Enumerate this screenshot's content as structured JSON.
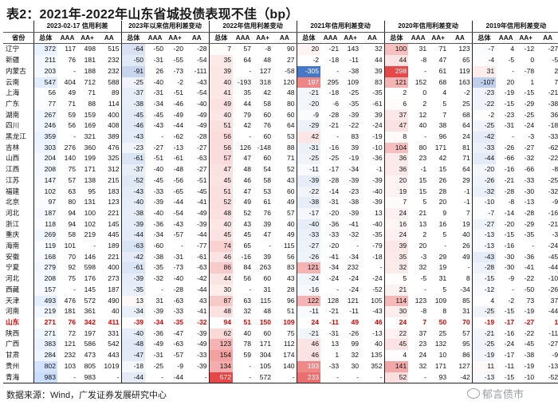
{
  "title": "表2：2021年-2022年山东省城投债表现不佳（bp）",
  "source": "数据来源：Wind，广发证券发展研究中心",
  "watermark": "郁言债市",
  "table": {
    "group_headers": [
      "2023-02-17 信用利差",
      "2023年以来信用利差变动",
      "2022年信用利差变动",
      "2021年信用利差变动",
      "2020年信用利差变动",
      "2019年信用利差变动"
    ],
    "province_header": "省份",
    "sub_headers": [
      "总体",
      "AAA",
      "AA+",
      "AA"
    ],
    "highlight_province": "山东",
    "rows": [
      [
        "辽宁",
        "372",
        "117",
        "498",
        "515",
        "-64",
        "-50",
        "-20",
        "-28",
        "7",
        "57",
        "-8",
        "90",
        "20",
        "-21",
        "143",
        "32",
        "100",
        "31",
        "71",
        "123",
        "-7",
        "4",
        "-12",
        "-27"
      ],
      [
        "新疆",
        "211",
        "76",
        "181",
        "232",
        "-50",
        "-31",
        "-55",
        "-54",
        "35",
        "64",
        "48",
        "27",
        "-2",
        "-18",
        "-11",
        "44",
        "44",
        "-8",
        "47",
        "65",
        "-4",
        "-5",
        "0",
        "-5"
      ],
      [
        "内蒙古",
        "203",
        "-",
        "188",
        "232",
        "-91",
        "26",
        "-73",
        "-111",
        "39",
        "-",
        "127",
        "-58",
        "-305",
        "-",
        "-38",
        "39",
        "298",
        "-",
        "61",
        "119",
        "31",
        "-",
        "-78",
        "2"
      ],
      [
        "云南",
        "547",
        "404",
        "712",
        "588",
        "-25",
        "-40",
        "-2",
        "-43",
        "40",
        "-193",
        "318",
        "120",
        "197",
        "295",
        "109",
        "83",
        "121",
        "152",
        "68",
        "163",
        "-107",
        "20",
        "1",
        "7"
      ],
      [
        "上海",
        "56",
        "49",
        "71",
        "89",
        "-37",
        "-31",
        "-51",
        "-54",
        "41",
        "35",
        "42",
        "48",
        "-21",
        "-18",
        "-25",
        "-35",
        "2",
        "0",
        "4",
        "-2",
        "-23",
        "-19",
        "-15",
        "-21"
      ],
      [
        "广东",
        "77",
        "71",
        "88",
        "114",
        "-38",
        "-34",
        "-46",
        "-40",
        "49",
        "44",
        "58",
        "80",
        "-20",
        "-6",
        "-35",
        "-61",
        "6",
        "2",
        "5",
        "25",
        "-22",
        "-15",
        "-29",
        "-38"
      ],
      [
        "湖南",
        "267",
        "59",
        "159",
        "400",
        "-45",
        "-45",
        "-49",
        "-49",
        "40",
        "79",
        "60",
        "60",
        "-9",
        "-28",
        "-39",
        "39",
        "37",
        "12",
        "7",
        "68",
        "-2",
        "-23",
        "-25",
        "36"
      ],
      [
        "四川",
        "246",
        "56",
        "169",
        "408",
        "-46",
        "-43",
        "-44",
        "-49",
        "51",
        "42",
        "76",
        "64",
        "-29",
        "-21",
        "-22",
        "-24",
        "47",
        "40",
        "38",
        "64",
        "-25",
        "-31",
        "-24",
        "-18"
      ],
      [
        "黑龙江",
        "359",
        "-",
        "321",
        "389",
        "-43",
        "-",
        "-62",
        "-28",
        "56",
        "-",
        "60",
        "53",
        "42",
        "-",
        "83",
        "-19",
        "8",
        "-",
        "96",
        "24",
        "-42",
        "-",
        "-3",
        "-33"
      ],
      [
        "吉林",
        "303",
        "276",
        "360",
        "476",
        "-23",
        "-27",
        "-13",
        "-27",
        "56",
        "126",
        "-148",
        "88",
        "-31",
        "-16",
        "39",
        "-10",
        "104",
        "80",
        "171",
        "81",
        "-33",
        "-26",
        "-27",
        "-62"
      ],
      [
        "山西",
        "204",
        "140",
        "199",
        "325",
        "-61",
        "-51",
        "-61",
        "-63",
        "57",
        "47",
        "60",
        "71",
        "-25",
        "-25",
        "-19",
        "-36",
        "36",
        "23",
        "42",
        "71",
        "-44",
        "-66",
        "-32",
        "-22"
      ],
      [
        "江西",
        "208",
        "75",
        "171",
        "312",
        "-37",
        "-40",
        "-48",
        "-27",
        "47",
        "48",
        "54",
        "52",
        "-11",
        "-17",
        "-34",
        "-1",
        "36",
        "-1",
        "15",
        "64",
        "-20",
        "-16",
        "-66",
        "-8"
      ],
      [
        "江苏",
        "147",
        "57",
        "138",
        "215",
        "-52",
        "-45",
        "-56",
        "-51",
        "45",
        "46",
        "58",
        "43",
        "-39",
        "-28",
        "-39",
        "-39",
        "20",
        "15",
        "26",
        "29",
        "-26",
        "-21",
        "-33",
        "-25"
      ],
      [
        "福建",
        "102",
        "63",
        "95",
        "183",
        "-43",
        "-33",
        "-65",
        "-45",
        "51",
        "47",
        "53",
        "60",
        "-22",
        "-14",
        "-23",
        "-40",
        "19",
        "15",
        "28",
        "-1",
        "-32",
        "-28",
        "-30",
        "-32"
      ],
      [
        "北京",
        "97",
        "80",
        "131",
        "123",
        "-40",
        "-39",
        "-44",
        "-41",
        "52",
        "49",
        "61",
        "49",
        "-38",
        "-31",
        "-38",
        "-39",
        "7",
        "5",
        "20",
        "-1",
        "-10",
        "-8",
        "-13",
        "-9"
      ],
      [
        "河北",
        "187",
        "94",
        "100",
        "221",
        "-38",
        "-40",
        "-54",
        "-49",
        "48",
        "52",
        "76",
        "57",
        "-17",
        "-20",
        "-39",
        "13",
        "24",
        "21",
        "9",
        "7",
        "-7",
        "-14",
        "-28",
        "-16"
      ],
      [
        "浙江",
        "118",
        "94",
        "102",
        "145",
        "-39",
        "-36",
        "-43",
        "-39",
        "40",
        "43",
        "39",
        "40",
        "-40",
        "-36",
        "-41",
        "-40",
        "16",
        "13",
        "16",
        "19",
        "-27",
        "-20",
        "-29",
        "-21"
      ],
      [
        "重庆",
        "269",
        "58",
        "219",
        "445",
        "-44",
        "-34",
        "-57",
        "-44",
        "45",
        "45",
        "47",
        "49",
        "-33",
        "-33",
        "-32",
        "-35",
        "24",
        "2",
        "5",
        "40",
        "-13",
        "-15",
        "-35",
        "-3"
      ],
      [
        "海南",
        "119",
        "101",
        "-",
        "189",
        "-63",
        "-60",
        "-",
        "-77",
        "74",
        "65",
        "-",
        "115",
        "-27",
        "-20",
        "-",
        "-79",
        "39",
        "20",
        "-",
        "26",
        "-13",
        "-16",
        "-",
        "-24"
      ],
      [
        "安徽",
        "168",
        "70",
        "146",
        "221",
        "-42",
        "-38",
        "-31",
        "-61",
        "46",
        "-16",
        "39",
        "56",
        "-26",
        "-41",
        "-34",
        "-18",
        "35",
        "-3",
        "29",
        "49",
        "-43",
        "-30",
        "-36",
        "-45"
      ],
      [
        "宁夏",
        "279",
        "92",
        "598",
        "400",
        "-61",
        "-35",
        "-73",
        "-63",
        "86",
        "84",
        "263",
        "83",
        "121",
        "-34",
        "232",
        "-",
        "32",
        "32",
        "19",
        "-",
        "-28",
        "-30",
        "-41",
        "-44"
      ],
      [
        "河北",
        "208",
        "75",
        "176",
        "273",
        "-39",
        "-32",
        "-40",
        "-42",
        "44",
        "56",
        "60",
        "43",
        "-24",
        "-24",
        "-24",
        "-24",
        "5",
        "-5",
        "31",
        "8",
        "-15",
        "-9",
        "-22",
        "-10"
      ],
      [
        "西藏",
        "157",
        "-",
        "145",
        "187",
        "-35",
        "-",
        "-28",
        "-44",
        "30",
        "-",
        "31",
        "28",
        "-16",
        "-",
        "-24",
        "-52",
        "21",
        "-",
        "5",
        "-34",
        "-12",
        "-",
        "-50",
        "-26"
      ],
      [
        "天津",
        "493",
        "476",
        "572",
        "490",
        "13",
        "31",
        "-63",
        "43",
        "87",
        "63",
        "115",
        "96",
        "122",
        "128",
        "121",
        "105",
        "114",
        "123",
        "109",
        "85",
        "4",
        "-2",
        "73",
        "37"
      ],
      [
        "河南",
        "219",
        "181",
        "361",
        "40",
        "-34",
        "-39",
        "-33",
        "-41",
        "48",
        "32",
        "48",
        "51",
        "-11",
        "-21",
        "-11",
        "-43",
        "30",
        "-8",
        "8",
        "31",
        "-25",
        "-15",
        "-19",
        "-44"
      ],
      [
        "山东",
        "271",
        "76",
        "342",
        "411",
        "-39",
        "-34",
        "-35",
        "-32",
        "94",
        "51",
        "150",
        "109",
        "24",
        "-11",
        "49",
        "46",
        "24",
        "7",
        "50",
        "70",
        "-19",
        "-17",
        "-27",
        "1"
      ],
      [
        "陕西",
        "271",
        "72",
        "197",
        "331",
        "-40",
        "-36",
        "-47",
        "-39",
        "62",
        "40",
        "60",
        "75",
        "-21",
        "-31",
        "-26",
        "-13",
        "22",
        "37",
        "25",
        "57",
        "-21",
        "-16",
        "-22",
        "-11"
      ],
      [
        "广西",
        "383",
        "121",
        "586",
        "542",
        "-48",
        "-49",
        "-63",
        "-49",
        "123",
        "78",
        "171",
        "112",
        "46",
        "13",
        "99",
        "40",
        "45",
        "23",
        "132",
        "95",
        "-25",
        "-24",
        "-45",
        "-27"
      ],
      [
        "甘肃",
        "284",
        "232",
        "473",
        "443",
        "-47",
        "-31",
        "-57",
        "-33",
        "154",
        "59",
        "304",
        "174",
        "46",
        "1",
        "32",
        "135",
        "4",
        "24",
        "10",
        "86",
        "-19",
        "-17",
        "-38",
        "-9"
      ],
      [
        "贵州",
        "802",
        "103",
        "805",
        "1019",
        "-18",
        "-25",
        "-9",
        "-39",
        "134",
        "-",
        "105",
        "140",
        "193",
        "-33",
        "30",
        "352",
        "141",
        "32",
        "171",
        "127",
        "11",
        "-11",
        "-19",
        "-13"
      ],
      [
        "青海",
        "983",
        "-",
        "983",
        "-",
        "-44",
        "-",
        "-44",
        "-",
        "572",
        "-",
        "572",
        "-",
        "233",
        "-",
        "-",
        "-",
        "52",
        "-",
        "93",
        "-42",
        "-13",
        "-15",
        "-10",
        "-52"
      ]
    ]
  }
}
